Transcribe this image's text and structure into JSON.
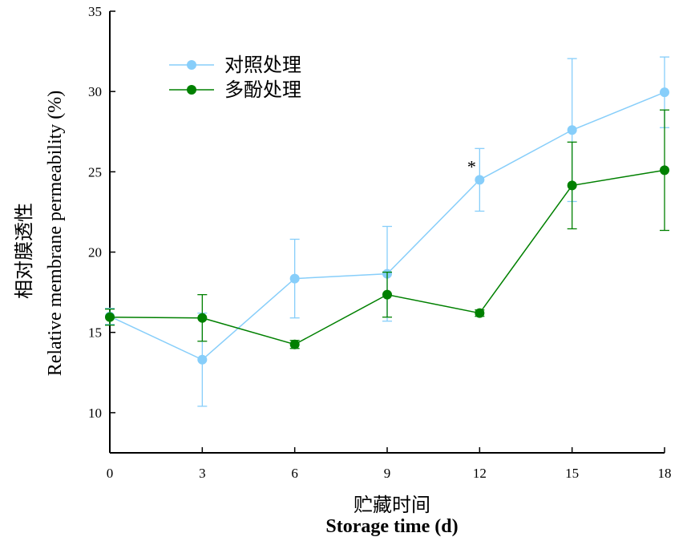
{
  "chart_data": {
    "type": "line",
    "title": "",
    "xlabel_cn": "贮藏时间",
    "xlabel": "Storage time (d)",
    "ylabel_cn": "相对膜透性",
    "ylabel": "Relative membrane permeability (%)",
    "x": [
      0,
      3,
      6,
      9,
      12,
      15,
      18
    ],
    "x_ticks": [
      "0",
      "3",
      "6",
      "9",
      "12",
      "15",
      "18"
    ],
    "xlim": [
      0,
      18
    ],
    "y_ticks": [
      "10",
      "15",
      "20",
      "25",
      "30",
      "35"
    ],
    "ylim": [
      7.5,
      35
    ],
    "grid": false,
    "legend_position": "top-left",
    "series": [
      {
        "name": "对照处理",
        "color": "#87cefa",
        "values": [
          16.0,
          13.3,
          18.35,
          18.65,
          24.5,
          27.6,
          29.95
        ],
        "errors": [
          0.5,
          2.9,
          2.45,
          2.95,
          1.95,
          4.45,
          2.2
        ]
      },
      {
        "name": "多酚处理",
        "color": "#008000",
        "values": [
          15.95,
          15.9,
          14.25,
          17.35,
          16.2,
          24.15,
          25.1
        ],
        "errors": [
          0.5,
          1.45,
          0.25,
          1.4,
          0.2,
          2.7,
          3.75
        ]
      }
    ],
    "annotations": [
      {
        "text": "*",
        "x": 12,
        "y": 25.65
      }
    ]
  }
}
